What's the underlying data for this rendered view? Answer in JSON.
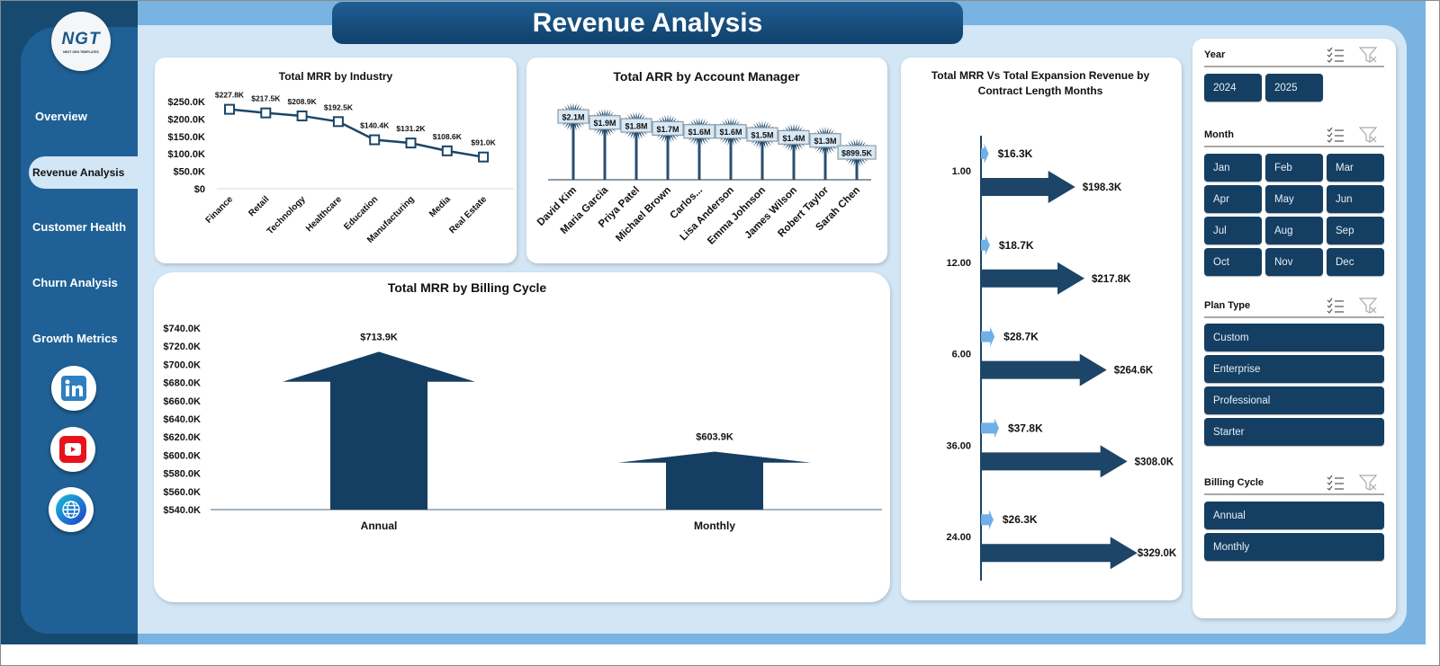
{
  "header": {
    "title": "Revenue Analysis"
  },
  "logo": {
    "text": "NGT",
    "subtext": "NEXT GEN TEMPLATES"
  },
  "sidebar": {
    "items": [
      {
        "label": "Overview"
      },
      {
        "label": "Revenue Analysis",
        "active": true
      },
      {
        "label": "Customer Health"
      },
      {
        "label": "Churn Analysis"
      },
      {
        "label": "Growth Metrics"
      }
    ],
    "social_icons": [
      "linkedin-icon",
      "youtube-icon",
      "globe-icon"
    ]
  },
  "colors": {
    "navy": "#143f63",
    "accent_light": "#6fb0e6",
    "panel": "#d3e6f5",
    "sidebar": "#1f6196"
  },
  "chart_data": [
    {
      "type": "line",
      "title": "Total MRR  by Industry",
      "categories": [
        "Finance",
        "Retail",
        "Technology",
        "Healthcare",
        "Education",
        "Manufacturing",
        "Media",
        "Real Estate"
      ],
      "values": [
        227.8,
        217.5,
        208.9,
        192.5,
        140.4,
        131.2,
        108.6,
        91.0
      ],
      "data_labels": [
        "$227.8K",
        "$217.5K",
        "$208.9K",
        "$192.5K",
        "$140.4K",
        "$131.2K",
        "$108.6K",
        "$91.0K"
      ],
      "unit": "K",
      "ylim": [
        0,
        250
      ],
      "yticks": [
        "$0",
        "$50.0K",
        "$100.0K",
        "$150.0K",
        "$200.0K",
        "$250.0K"
      ],
      "grid": false
    },
    {
      "type": "bar",
      "title": "Total ARR by Account Manager",
      "categories": [
        "David Kim",
        "Maria Garcia",
        "Priya Patel",
        "Michael Brown",
        "Carlos...",
        "Lisa Anderson",
        "Emma Johnson",
        "James Wilson",
        "Robert Taylor",
        "Sarah Chen"
      ],
      "values": [
        2.1,
        1.9,
        1.8,
        1.7,
        1.6,
        1.6,
        1.5,
        1.4,
        1.3,
        0.8995
      ],
      "data_labels": [
        "$2.1M",
        "$1.9M",
        "$1.8M",
        "$1.7M",
        "$1.6M",
        "$1.6M",
        "$1.5M",
        "$1.4M",
        "$1.3M",
        "$899.5K"
      ],
      "unit": "M",
      "grid": false
    },
    {
      "type": "bar",
      "title": "Total MRR by Billing Cycle",
      "categories": [
        "Annual",
        "Monthly"
      ],
      "values": [
        713.9,
        603.9
      ],
      "data_labels": [
        "$713.9K",
        "$603.9K"
      ],
      "unit": "K",
      "ylim": [
        540,
        740
      ],
      "yticks": [
        "$540.0K",
        "$560.0K",
        "$580.0K",
        "$600.0K",
        "$620.0K",
        "$640.0K",
        "$660.0K",
        "$680.0K",
        "$700.0K",
        "$720.0K",
        "$740.0K"
      ],
      "grid": false
    },
    {
      "type": "bar",
      "orientation": "horizontal",
      "title": "Total MRR Vs Total Expansion Revenue by Contract Length Months",
      "categories": [
        "1.00",
        "12.00",
        "6.00",
        "36.00",
        "24.00"
      ],
      "unit": "K",
      "series": [
        {
          "values": [
            16.3,
            18.7,
            28.7,
            37.8,
            26.3
          ],
          "data_labels": [
            "$16.3K",
            "$18.7K",
            "$28.7K",
            "$37.8K",
            "$26.3K"
          ],
          "color": "#6fb0e6"
        },
        {
          "values": [
            198.3,
            217.8,
            264.6,
            308.0,
            329.0
          ],
          "data_labels": [
            "$198.3K",
            "$217.8K",
            "$264.6K",
            "$308.0K",
            "$329.0K"
          ],
          "color": "#1c4568"
        }
      ],
      "grid": false
    }
  ],
  "slicers": {
    "year": {
      "title": "Year",
      "items": [
        "2024",
        "2025"
      ]
    },
    "month": {
      "title": "Month",
      "items": [
        "Jan",
        "Feb",
        "Mar",
        "Apr",
        "May",
        "Jun",
        "Jul",
        "Aug",
        "Sep",
        "Oct",
        "Nov",
        "Dec"
      ]
    },
    "plan_type": {
      "title": "Plan Type",
      "items": [
        "Custom",
        "Enterprise",
        "Professional",
        "Starter"
      ]
    },
    "billing_cycle": {
      "title": "Billing Cycle",
      "items": [
        "Annual",
        "Monthly"
      ]
    }
  }
}
